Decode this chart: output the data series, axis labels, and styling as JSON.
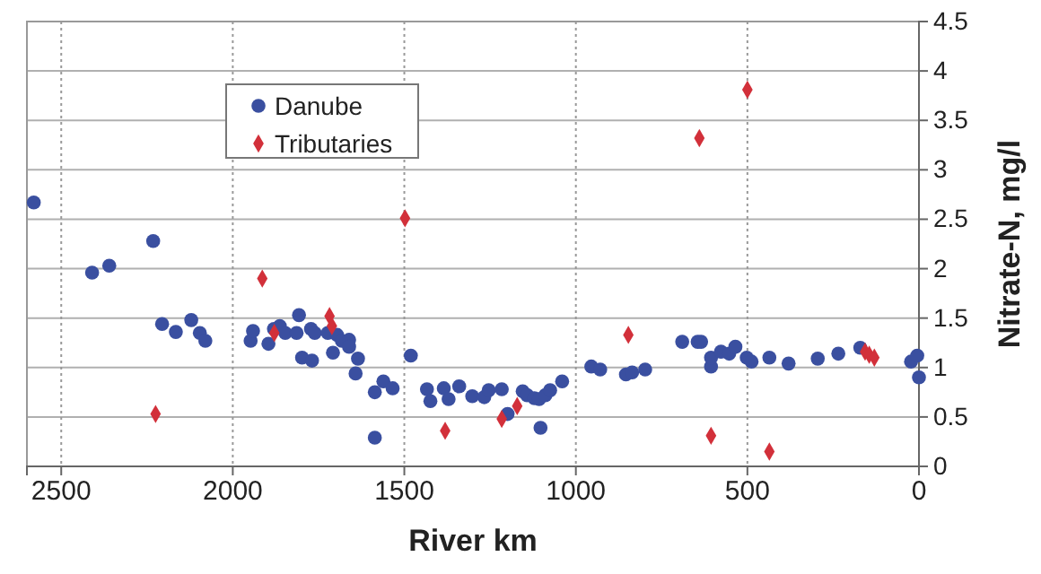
{
  "chart_data": {
    "type": "scatter",
    "xlabel": "River km",
    "ylabel": "Nitrate-N, mg/l",
    "xlim": [
      2600,
      0
    ],
    "xticks": [
      2500,
      2000,
      1500,
      1000,
      500,
      0
    ],
    "ylim": [
      0,
      4.5
    ],
    "yticks": [
      0,
      0.5,
      1,
      1.5,
      2,
      2.5,
      3,
      3.5,
      4,
      4.5
    ],
    "grid": true,
    "legend": "top left",
    "series": [
      {
        "name": "Danube",
        "color": "#3a4fa0",
        "marker": "circle",
        "x": [
          2580,
          2232,
          2410,
          2360,
          2206,
          2166,
          2121,
          2096,
          2080,
          1948,
          1941,
          1896,
          1880,
          1863,
          1847,
          1814,
          1807,
          1798,
          1769,
          1772,
          1761,
          1723,
          1708,
          1696,
          1682,
          1661,
          1661,
          1642,
          1635,
          1586,
          1586,
          1561,
          1534,
          1481,
          1434,
          1424,
          1385,
          1371,
          1340,
          1302,
          1267,
          1254,
          1216,
          1199,
          1155,
          1142,
          1121,
          1107,
          1103,
          1089,
          1075,
          1040,
          955,
          929,
          854,
          836,
          798,
          690,
          645,
          635,
          606,
          606,
          577,
          553,
          535,
          502,
          488,
          436,
          380,
          295,
          235,
          171,
          23,
          5,
          0
        ],
        "values": [
          2.67,
          2.28,
          1.96,
          2.03,
          1.44,
          1.36,
          1.48,
          1.35,
          1.27,
          1.27,
          1.37,
          1.24,
          1.39,
          1.42,
          1.35,
          1.35,
          1.53,
          1.1,
          1.07,
          1.39,
          1.35,
          1.35,
          1.15,
          1.33,
          1.27,
          1.28,
          1.21,
          0.94,
          1.09,
          0.29,
          0.75,
          0.86,
          0.79,
          1.12,
          0.78,
          0.66,
          0.79,
          0.68,
          0.81,
          0.71,
          0.7,
          0.77,
          0.78,
          0.53,
          0.76,
          0.72,
          0.69,
          0.68,
          0.39,
          0.72,
          0.77,
          0.86,
          1.01,
          0.98,
          0.93,
          0.95,
          0.98,
          1.26,
          1.26,
          1.26,
          1.01,
          1.1,
          1.16,
          1.14,
          1.21,
          1.1,
          1.06,
          1.1,
          1.04,
          1.09,
          1.14,
          1.2,
          1.06,
          1.12,
          0.9
        ]
      },
      {
        "name": "Tributaries",
        "color": "#d2303a",
        "marker": "diamond",
        "x": [
          2225,
          1914,
          1879,
          1718,
          1711,
          1498,
          1381,
          1216,
          1171,
          847,
          640,
          500,
          606,
          436,
          157,
          145,
          130
        ],
        "values": [
          0.53,
          1.9,
          1.35,
          1.52,
          1.42,
          2.51,
          0.36,
          0.48,
          0.61,
          1.33,
          3.32,
          3.81,
          0.31,
          0.15,
          1.16,
          1.13,
          1.1
        ]
      }
    ]
  }
}
